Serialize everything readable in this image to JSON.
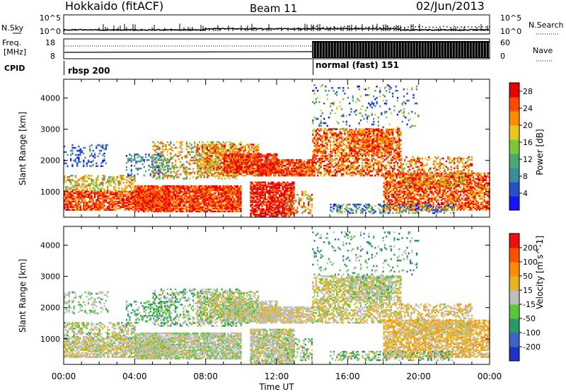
{
  "header": {
    "title": "Hokkaido (fitACF)",
    "beam": "Beam 11",
    "date": "02/Jun/2013"
  },
  "noise_panel": {
    "left_label": "N.Sky",
    "right_label": "N.Search",
    "left_ticks": [
      "10^5",
      "10^0"
    ],
    "right_ticks": [
      "10^5",
      "10^0"
    ]
  },
  "freq_panel": {
    "left_label_1": "Freq.",
    "left_label_2": "[MHz]",
    "right_label": "Nave",
    "left_ticks": [
      "18",
      "8"
    ],
    "right_ticks": [
      "60",
      "0"
    ]
  },
  "cpid": {
    "label": "CPID",
    "modes": [
      {
        "name": "rbsp 200",
        "start_hour": 0
      },
      {
        "name": "normal (fast) 151",
        "start_hour": 14
      }
    ]
  },
  "x_axis": {
    "label": "Time UT",
    "ticks": [
      "00:00",
      "04:00",
      "08:00",
      "12:00",
      "16:00",
      "20:00",
      "00:00"
    ]
  },
  "chart_data": [
    {
      "type": "heatmap",
      "parameter": "Power",
      "xlabel": "Time UT",
      "ylabel": "Slant Range [km]",
      "y_ticks": [
        "1000",
        "2000",
        "3000",
        "4000"
      ],
      "xlim_hours": [
        0,
        24
      ],
      "ylim_km": [
        180,
        4600
      ],
      "colorbar_label": "Power [dB]",
      "colorbar_ticks": [
        "4",
        "8",
        "12",
        "16",
        "20",
        "24",
        "28"
      ],
      "colorbar_range": [
        0,
        30
      ],
      "colorbar_colors": [
        "#1414ff",
        "#2850c8",
        "#3c8c9a",
        "#4aa870",
        "#7cc63c",
        "#e6c81e",
        "#ff8c00",
        "#ff4a00",
        "#e60000"
      ]
    },
    {
      "type": "heatmap",
      "parameter": "Velocity",
      "xlabel": "Time UT",
      "ylabel": "Slant Range [km]",
      "y_ticks": [
        "1000",
        "2000",
        "3000",
        "4000"
      ],
      "xlim_hours": [
        0,
        24
      ],
      "ylim_km": [
        180,
        4600
      ],
      "colorbar_label": "Velocity [m s^-1]",
      "colorbar_ticks": [
        "200",
        "100",
        "50",
        "15",
        "-15",
        "-50",
        "-100",
        "-200"
      ],
      "colorbar_range": [
        -250,
        250
      ],
      "colorbar_colors": [
        "#1e32c8",
        "#3c64c8",
        "#2a9a6a",
        "#5ac83a",
        "#bdbdbd",
        "#e6b41e",
        "#ff8c00",
        "#ff5000",
        "#ee1010"
      ]
    }
  ]
}
